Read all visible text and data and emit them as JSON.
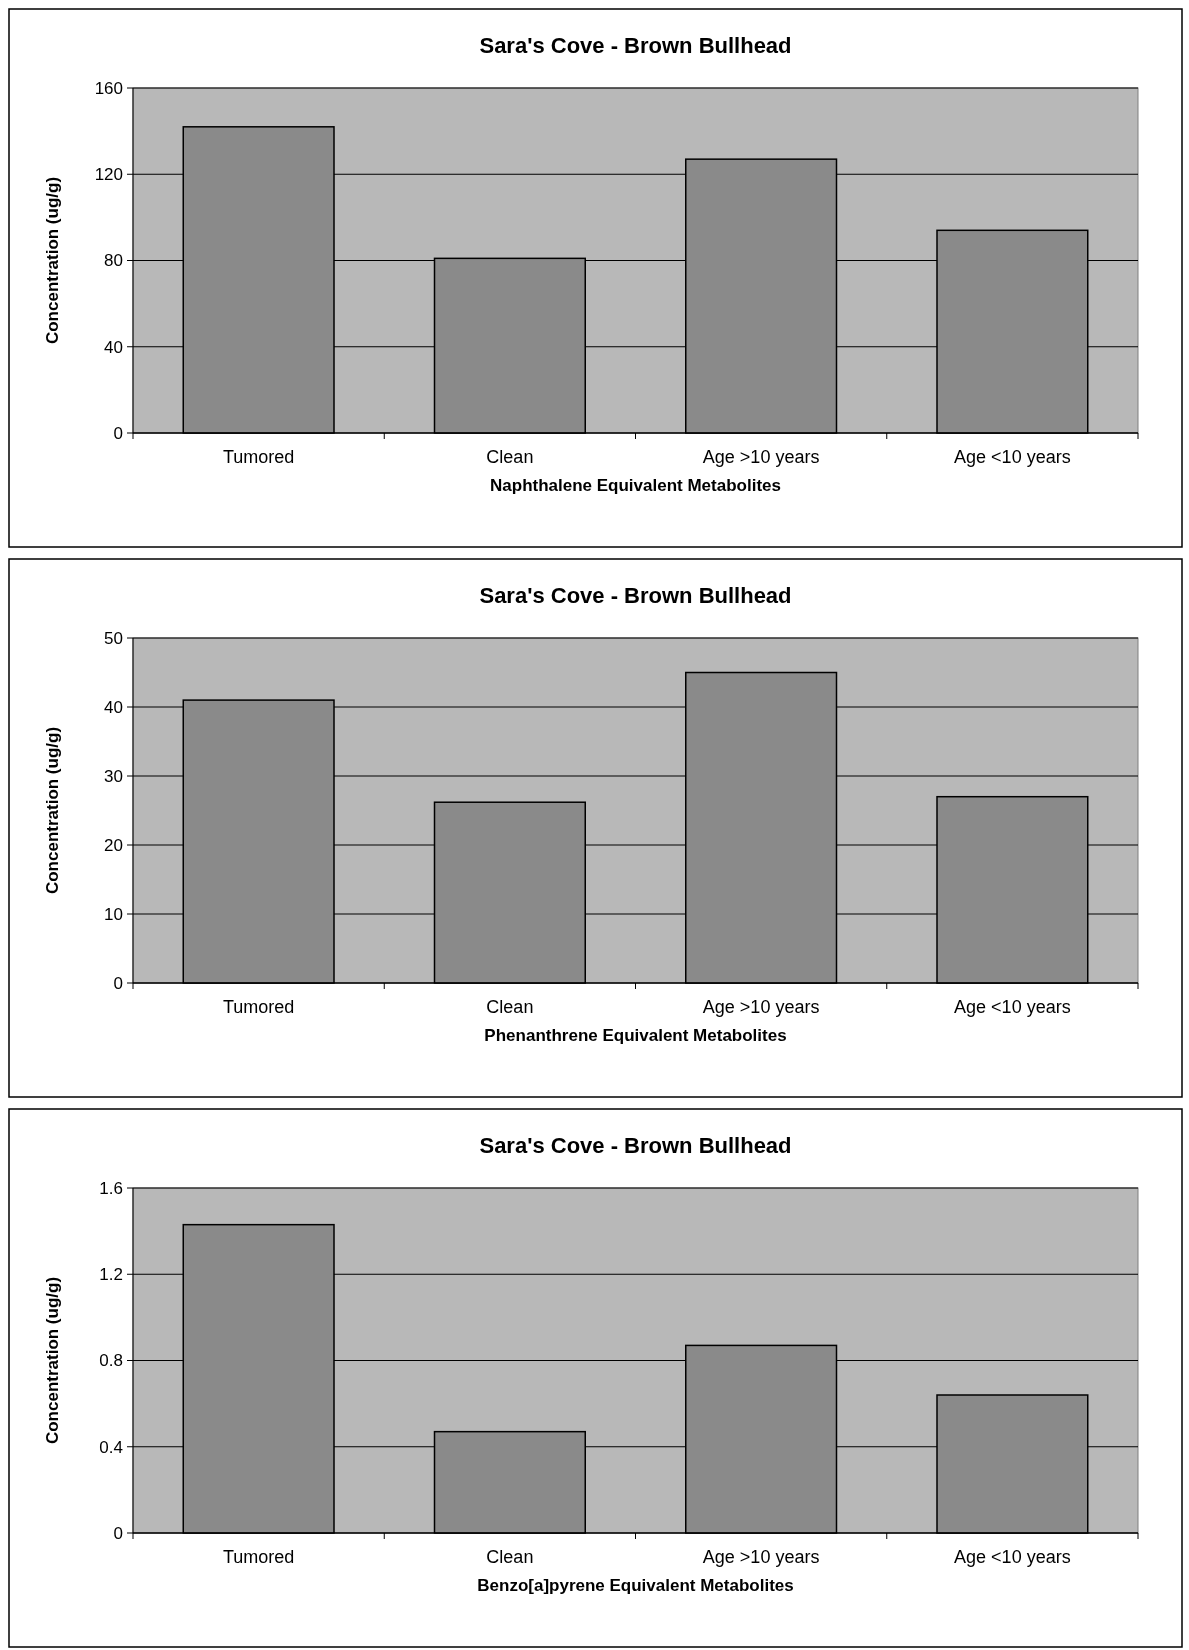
{
  "chart_data": [
    {
      "type": "bar",
      "title": "Sara's Cove - Brown Bullhead",
      "xlabel": "Naphthalene Equivalent Metabolites",
      "ylabel": "Concentration (ug/g)",
      "categories": [
        "Tumored",
        "Clean",
        "Age >10 years",
        "Age <10 years"
      ],
      "values": [
        142,
        81,
        127,
        94
      ],
      "color": "#8a8a8a",
      "ylim": [
        0,
        160
      ],
      "yticks": [
        0,
        40,
        80,
        120,
        160
      ],
      "grid": "y"
    },
    {
      "type": "bar",
      "title": "Sara's Cove - Brown Bullhead",
      "xlabel": "Phenanthrene Equivalent Metabolites",
      "ylabel": "Concentration (ug/g)",
      "categories": [
        "Tumored",
        "Clean",
        "Age >10 years",
        "Age <10 years"
      ],
      "values": [
        41,
        26.2,
        45,
        27
      ],
      "color": "#8a8a8a",
      "ylim": [
        0,
        50
      ],
      "yticks": [
        0,
        10,
        20,
        30,
        40,
        50
      ],
      "grid": "y"
    },
    {
      "type": "bar",
      "title": "Sara's Cove - Brown Bullhead",
      "xlabel": "Benzo[a]pyrene Equivalent Metabolites",
      "ylabel": "Concentration (ug/g)",
      "categories": [
        "Tumored",
        "Clean",
        "Age >10 years",
        "Age <10 years"
      ],
      "values": [
        1.43,
        0.47,
        0.87,
        0.64
      ],
      "color": "#8a8a8a",
      "ylim": [
        0,
        1.6
      ],
      "yticks": [
        0,
        0.4,
        0.8,
        1.2,
        1.6
      ],
      "grid": "y"
    }
  ]
}
